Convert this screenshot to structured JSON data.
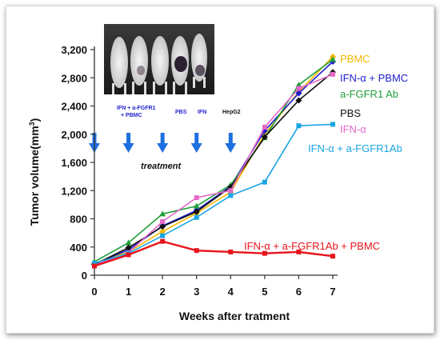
{
  "chart_data": {
    "type": "line",
    "ylabel": "Tumor volume(mm³)",
    "ylabel_main": "Tumor volume(mm",
    "ylabel_sup": "3",
    "ylabel_close": ")",
    "xlabel": "Weeks after tratment",
    "x": [
      0,
      1,
      2,
      3,
      4,
      5,
      6,
      7
    ],
    "xlim": [
      0,
      7
    ],
    "ylim": [
      0,
      3200
    ],
    "y_ticks": [
      0,
      400,
      800,
      1200,
      1600,
      2000,
      2400,
      2800,
      3200
    ],
    "y_tick_labels": [
      "0",
      "400",
      "800",
      "1,200",
      "1,600",
      "2,000",
      "2,400",
      "2,800",
      "3,200"
    ],
    "x_tick_labels": [
      "0",
      "1",
      "2",
      "3",
      "4",
      "5",
      "6",
      "7"
    ],
    "series": [
      {
        "name": "PBMC",
        "color": "#f5b800",
        "marker": "diamond",
        "values": [
          170,
          330,
          620,
          880,
          1180,
          2000,
          2600,
          3100
        ]
      },
      {
        "name": "IFN-α + PBMC",
        "color": "#1e1ecf",
        "marker": "diamond",
        "values": [
          160,
          360,
          700,
          920,
          1260,
          2050,
          2580,
          3030
        ]
      },
      {
        "name": "a-FGFR1 Ab",
        "color": "#1f9e3a",
        "marker": "triangle",
        "values": [
          190,
          460,
          870,
          980,
          1280,
          1950,
          2700,
          3060
        ]
      },
      {
        "name": "PBS",
        "color": "#111111",
        "marker": "diamond",
        "values": [
          150,
          390,
          690,
          900,
          1250,
          1960,
          2480,
          2880
        ]
      },
      {
        "name": "IFN-α",
        "color": "#e468c8",
        "marker": "square",
        "values": [
          140,
          320,
          760,
          1100,
          1200,
          2100,
          2650,
          2850
        ]
      },
      {
        "name": "IFN-α + a-FGFR1Ab",
        "color": "#1aa5e3",
        "marker": "square",
        "values": [
          170,
          310,
          560,
          820,
          1130,
          1320,
          2120,
          2140
        ]
      },
      {
        "name": "IFN-α + a-FGFR1Ab + PBMC",
        "color": "#e8141b",
        "marker": "square",
        "values": [
          130,
          290,
          480,
          350,
          330,
          310,
          330,
          270
        ]
      }
    ],
    "legend_entries": [
      {
        "text": "PBMC",
        "color": "#f5b800"
      },
      {
        "text": "IFN-α + PBMC",
        "color": "#1e1ecf"
      },
      {
        "text": "a-FGFR1 Ab",
        "color": "#1f9e3a"
      },
      {
        "text": "PBS",
        "color": "#111111"
      },
      {
        "text": "IFN-α",
        "color": "#e468c8"
      },
      {
        "text": "IFN-α + a-FGFR1Ab",
        "color": "#1aa5e3"
      }
    ],
    "red_label": "IFN-α + a-FGFR1Ab + PBMC",
    "treatment_label": "treatment",
    "treatment_weeks": [
      0,
      1,
      2,
      3,
      4
    ],
    "arrow_color": "#1e6fe0",
    "inset": {
      "labels": [
        "IFN + a-FGFR1\n+ PBMC",
        "PBS",
        "IFN",
        "HepG2"
      ]
    }
  }
}
